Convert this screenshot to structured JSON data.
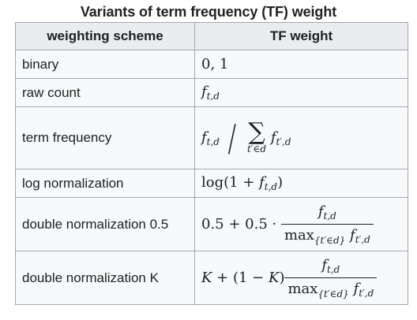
{
  "caption": "Variants of term frequency (TF) weight",
  "headers": {
    "scheme": "weighting scheme",
    "weight": "TF weight"
  },
  "rows": [
    {
      "scheme": "binary",
      "formula": "0, 1"
    },
    {
      "scheme": "raw count",
      "formula": "f_t,d"
    },
    {
      "scheme": "term frequency",
      "formula": "f_t,d / sum_{t' in d} f_t',d"
    },
    {
      "scheme": "log normalization",
      "formula": "log(1 + f_t,d)"
    },
    {
      "scheme": "double normalization 0.5",
      "formula": "0.5 + 0.5 · f_t,d / max_{t' in d} f_t',d"
    },
    {
      "scheme": "double normalization K",
      "formula": "K + (1 − K) f_t,d / max_{t' in d} f_t',d"
    }
  ],
  "math": {
    "f": "f",
    "sub_td": "t,d",
    "sub_tpd": "t′,d",
    "sum_symbol": "∑",
    "sum_under": "t′∈d",
    "slash": "/",
    "binary": "0, 1",
    "log_fn": "log",
    "log_open": "(1 + ",
    "log_close": ")",
    "half_prefix": "0.5 + 0.5 · ",
    "max_fn": "max",
    "max_sub": "{t′∈d}",
    "K": "K",
    "K_mid": " + (1 − ",
    "K_close": ")"
  }
}
